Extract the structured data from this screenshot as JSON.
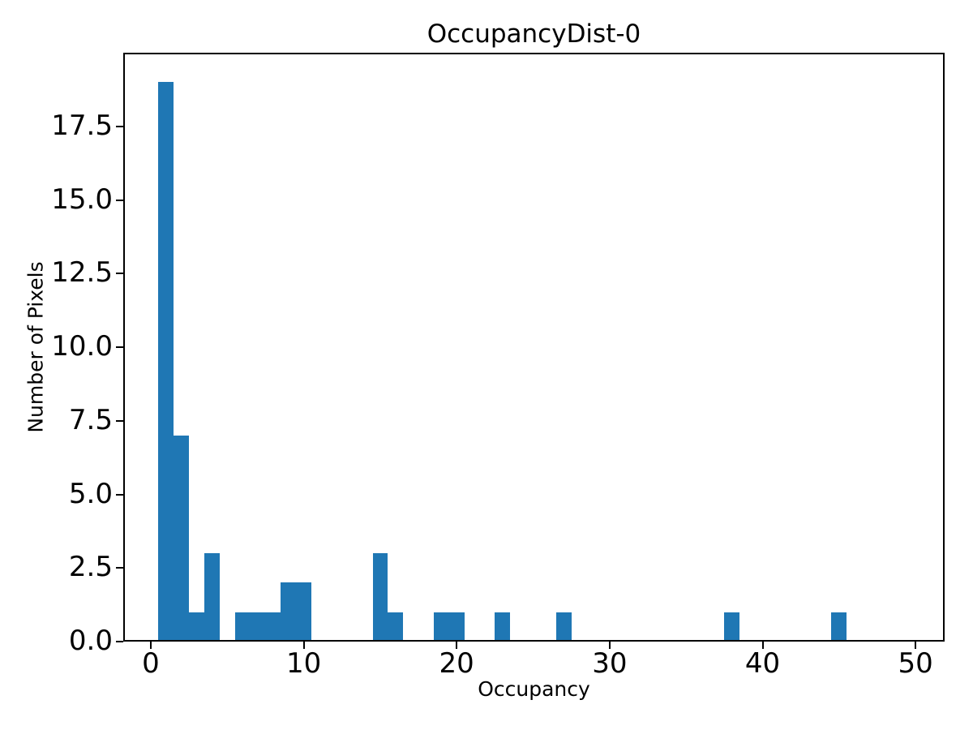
{
  "figure": {
    "background_color": "#ffffff"
  },
  "chart_data": {
    "type": "bar",
    "subtype": "histogram",
    "title": "OccupancyDist-0",
    "xlabel": "Occupancy",
    "ylabel": "Number of Pixels",
    "bar_color": "#1f77b4",
    "axis_color": "#000000",
    "grid": false,
    "legend": false,
    "bin_width": 1,
    "xlim": [
      -1.8,
      51.9
    ],
    "ylim": [
      0,
      20
    ],
    "xticks": [
      {
        "value": 0,
        "label": "0"
      },
      {
        "value": 10,
        "label": "10"
      },
      {
        "value": 20,
        "label": "20"
      },
      {
        "value": 30,
        "label": "30"
      },
      {
        "value": 40,
        "label": "40"
      },
      {
        "value": 50,
        "label": "50"
      }
    ],
    "yticks": [
      {
        "value": 0,
        "label": "0.0"
      },
      {
        "value": 2.5,
        "label": "2.5"
      },
      {
        "value": 5,
        "label": "5.0"
      },
      {
        "value": 7.5,
        "label": "7.5"
      },
      {
        "value": 10,
        "label": "10.0"
      },
      {
        "value": 12.5,
        "label": "12.5"
      },
      {
        "value": 15,
        "label": "15.0"
      },
      {
        "value": 17.5,
        "label": "17.5"
      }
    ],
    "bins": [
      {
        "start": 0.5,
        "end": 1.5,
        "count": 19
      },
      {
        "start": 1.5,
        "end": 2.5,
        "count": 7
      },
      {
        "start": 2.5,
        "end": 3.5,
        "count": 1
      },
      {
        "start": 3.5,
        "end": 4.5,
        "count": 3
      },
      {
        "start": 5.5,
        "end": 6.5,
        "count": 1
      },
      {
        "start": 6.5,
        "end": 7.5,
        "count": 1
      },
      {
        "start": 7.5,
        "end": 8.5,
        "count": 1
      },
      {
        "start": 8.5,
        "end": 9.5,
        "count": 2
      },
      {
        "start": 9.5,
        "end": 10.5,
        "count": 2
      },
      {
        "start": 14.5,
        "end": 15.5,
        "count": 3
      },
      {
        "start": 15.5,
        "end": 16.5,
        "count": 1
      },
      {
        "start": 18.5,
        "end": 19.5,
        "count": 1
      },
      {
        "start": 19.5,
        "end": 20.5,
        "count": 1
      },
      {
        "start": 22.5,
        "end": 23.5,
        "count": 1
      },
      {
        "start": 26.5,
        "end": 27.5,
        "count": 1
      },
      {
        "start": 37.5,
        "end": 38.5,
        "count": 1
      },
      {
        "start": 44.5,
        "end": 45.5,
        "count": 1
      }
    ]
  }
}
